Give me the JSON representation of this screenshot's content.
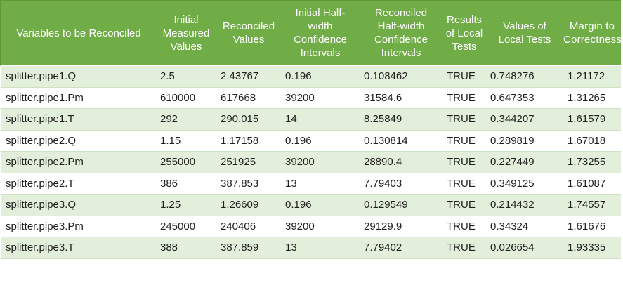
{
  "colors": {
    "header-bg": "#70ad47",
    "header-edge": "#5e9638",
    "header-text": "#ffffff",
    "band-bg": "#e2efda",
    "hairline": "#cfe2bf",
    "body-text": "#1f1f1f"
  },
  "table": {
    "columns": [
      {
        "label": "Variables to be Reconciled"
      },
      {
        "label": "Initial\nMeasured\nValues"
      },
      {
        "label": "Reconciled\nValues"
      },
      {
        "label": "Initial Half-\nwidth\nConfidence\nIntervals"
      },
      {
        "label": "Reconciled\nHalf-width\nConfidence\nIntervals"
      },
      {
        "label": "Results\nof Local\nTests"
      },
      {
        "label": "Values of\nLocal Tests"
      },
      {
        "label": "Margin to\nCorrectness"
      }
    ],
    "rows": [
      [
        "splitter.pipe1.Q",
        "2.5",
        "2.43767",
        "0.196",
        "0.108462",
        "TRUE",
        "0.748276",
        "1.21172"
      ],
      [
        "splitter.pipe1.Pm",
        "610000",
        "617668",
        "39200",
        "31584.6",
        "TRUE",
        "0.647353",
        "1.31265"
      ],
      [
        "splitter.pipe1.T",
        "292",
        "290.015",
        "14",
        "8.25849",
        "TRUE",
        "0.344207",
        "1.61579"
      ],
      [
        "splitter.pipe2.Q",
        "1.15",
        "1.17158",
        "0.196",
        "0.130814",
        "TRUE",
        "0.289819",
        "1.67018"
      ],
      [
        "splitter.pipe2.Pm",
        "255000",
        "251925",
        "39200",
        "28890.4",
        "TRUE",
        "0.227449",
        "1.73255"
      ],
      [
        "splitter.pipe2.T",
        "386",
        "387.853",
        "13",
        "7.79403",
        "TRUE",
        "0.349125",
        "1.61087"
      ],
      [
        "splitter.pipe3.Q",
        "1.25",
        "1.26609",
        "0.196",
        "0.129549",
        "TRUE",
        "0.214432",
        "1.74557"
      ],
      [
        "splitter.pipe3.Pm",
        "245000",
        "240406",
        "39200",
        "29129.9",
        "TRUE",
        "0.34324",
        "1.61676"
      ],
      [
        "splitter.pipe3.T",
        "388",
        "387.859",
        "13",
        "7.79402",
        "TRUE",
        "0.026654",
        "1.93335"
      ]
    ]
  }
}
